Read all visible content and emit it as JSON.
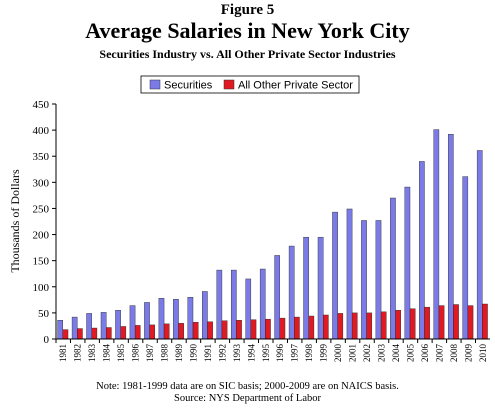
{
  "figure_label": "Figure 5",
  "note": "Note: 1981-1999 data are on SIC basis; 2000-2009 are on NAICS basis.",
  "source": "Source: NYS Department of Labor",
  "chart_data": {
    "type": "bar",
    "title": "Average Salaries in New York City",
    "subtitle": "Securities Industry vs. All Other Private Sector Industries",
    "xlabel": "",
    "ylabel": "Thousands of Dollars",
    "ylim": [
      0,
      450
    ],
    "yticks": [
      0,
      50,
      100,
      150,
      200,
      250,
      300,
      350,
      400,
      450
    ],
    "grid": false,
    "legend_position": "top",
    "categories": [
      "1981",
      "1982",
      "1983",
      "1984",
      "1985",
      "1986",
      "1987",
      "1988",
      "1989",
      "1990",
      "1991",
      "1992",
      "1993",
      "1994",
      "1995",
      "1996",
      "1997",
      "1998",
      "1999",
      "2000",
      "2001",
      "2002",
      "2003",
      "2004",
      "2005",
      "2006",
      "2007",
      "2008",
      "2009",
      "2010"
    ],
    "series": [
      {
        "name": "Securities",
        "color": "#7b7be8",
        "values": [
          36,
          42,
          49,
          51,
          55,
          64,
          70,
          78,
          76,
          80,
          91,
          132,
          132,
          115,
          134,
          160,
          178,
          195,
          195,
          243,
          249,
          227,
          227,
          270,
          291,
          340,
          401,
          392,
          311,
          361
        ]
      },
      {
        "name": "All Other Private Sector",
        "color": "#e01a22",
        "values": [
          18,
          20,
          21,
          22,
          24,
          26,
          27,
          29,
          30,
          32,
          33,
          35,
          36,
          37,
          38,
          40,
          42,
          44,
          46,
          49,
          50,
          50,
          52,
          55,
          58,
          61,
          64,
          66,
          64,
          67
        ]
      }
    ]
  }
}
